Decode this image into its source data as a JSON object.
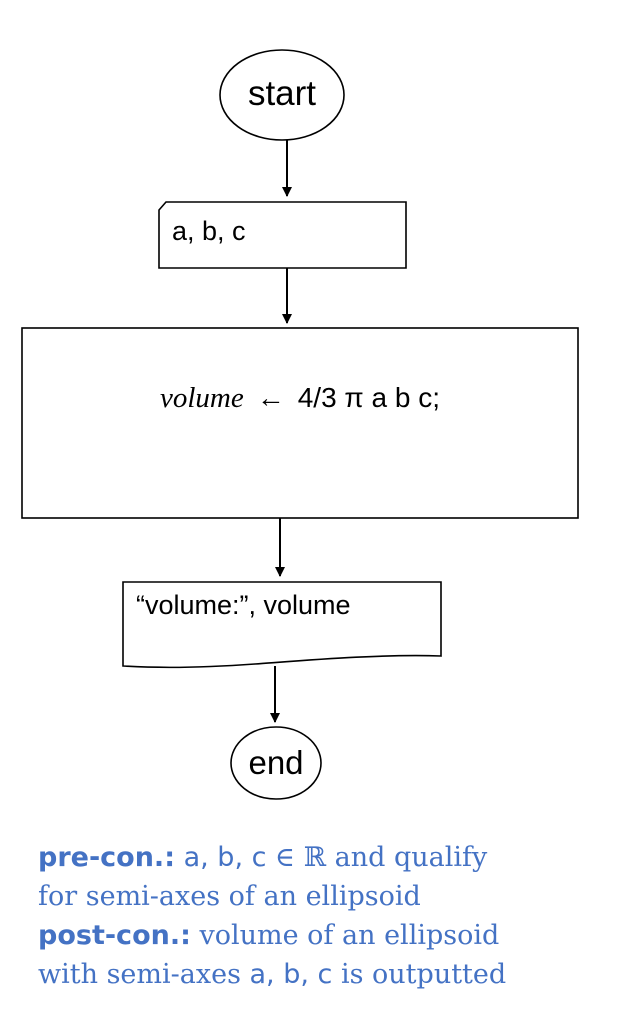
{
  "flowchart": {
    "start": "start",
    "input": "a, b, c",
    "process": {
      "variable": "volume",
      "arrow": "←",
      "expression": "4/3 π a b c;"
    },
    "output": "“volume:”, volume",
    "end": "end"
  },
  "conditions": {
    "pre_label": "pre-con.:",
    "pre_vars": "a, b, c",
    "pre_symbol": "∈ ℝ",
    "pre_text_1": "and qualify",
    "pre_text_2": "for semi-axes of an ellipsoid",
    "post_label": "post-con.:",
    "post_text_1": "volume of an ellipsoid",
    "post_text_2_a": "with semi-axes",
    "post_vars": "a, b, c",
    "post_text_2_b": "is outputted"
  },
  "colors": {
    "stroke": "#000000",
    "note": "#4472c4"
  }
}
